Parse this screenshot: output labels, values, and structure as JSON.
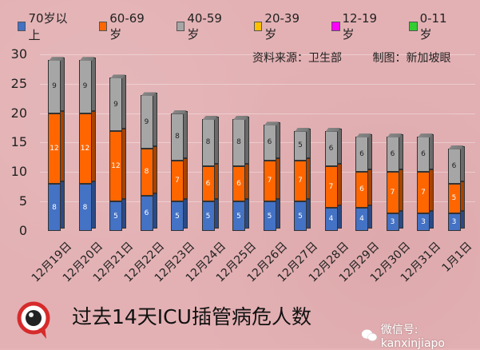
{
  "chart_data": {
    "type": "bar",
    "stacked": true,
    "title": "过去14天ICU插管病危人数",
    "categories": [
      "12月19日",
      "12月20日",
      "12月21日",
      "12月22日",
      "12月23日",
      "12月24日",
      "12月25日",
      "12月26日",
      "12月27日",
      "12月28日",
      "12月29日",
      "12月30日",
      "12月31日",
      "1月1日"
    ],
    "series": [
      {
        "name": "70岁以上",
        "color": "#4472c4",
        "values": [
          8,
          8,
          5,
          6,
          5,
          5,
          5,
          5,
          5,
          4,
          4,
          3,
          3,
          3
        ]
      },
      {
        "name": "60-69岁",
        "color": "#ff6600",
        "values": [
          12,
          12,
          12,
          8,
          7,
          6,
          6,
          7,
          7,
          7,
          6,
          7,
          7,
          5
        ]
      },
      {
        "name": "40-59岁",
        "color": "#a6a6a6",
        "values": [
          9,
          9,
          9,
          9,
          8,
          8,
          8,
          6,
          5,
          6,
          6,
          6,
          6,
          6
        ]
      },
      {
        "name": "20-39岁",
        "color": "#ffc000",
        "values": [
          0,
          0,
          0,
          0,
          0,
          0,
          0,
          0,
          0,
          0,
          0,
          0,
          0,
          0
        ]
      },
      {
        "name": "12-19岁",
        "color": "#ff00ff",
        "values": [
          0,
          0,
          0,
          0,
          0,
          0,
          0,
          0,
          0,
          0,
          0,
          0,
          0,
          0
        ]
      },
      {
        "name": "0-11岁",
        "color": "#33cc33",
        "values": [
          0,
          0,
          0,
          0,
          0,
          0,
          0,
          0,
          0,
          0,
          0,
          0,
          0,
          0
        ]
      }
    ],
    "xlabel": "",
    "ylabel": "",
    "ylim": [
      0,
      30
    ],
    "yticks": [
      0,
      5,
      10,
      15,
      20,
      25,
      30
    ],
    "legend_position": "top",
    "grid": true
  },
  "annotations": {
    "source": "资料来源：卫生部",
    "made_by": "制图：新加坡眼"
  },
  "footer": {
    "title": "过去14天ICU插管病危人数",
    "wechat": "微信号: kanxinjiapo",
    "logo_text": "新加坡眼"
  }
}
